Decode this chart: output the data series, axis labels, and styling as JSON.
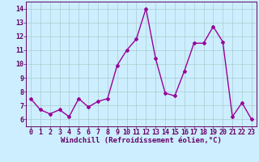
{
  "x": [
    0,
    1,
    2,
    3,
    4,
    5,
    6,
    7,
    8,
    9,
    10,
    11,
    12,
    13,
    14,
    15,
    16,
    17,
    18,
    19,
    20,
    21,
    22,
    23
  ],
  "y": [
    7.5,
    6.7,
    6.4,
    6.7,
    6.2,
    7.5,
    6.9,
    7.3,
    7.5,
    9.9,
    11.0,
    11.8,
    14.0,
    10.4,
    7.9,
    7.7,
    9.5,
    11.5,
    11.5,
    12.7,
    11.6,
    6.2,
    7.2,
    6.0
  ],
  "line_color": "#990099",
  "marker": "D",
  "marker_size": 2.0,
  "line_width": 1.0,
  "bg_color": "#cceeff",
  "grid_color": "#aacccc",
  "xlabel": "Windchill (Refroidissement éolien,°C)",
  "xlabel_color": "#660066",
  "tick_color": "#660066",
  "ylim": [
    5.5,
    14.5
  ],
  "xlim": [
    -0.5,
    23.5
  ],
  "yticks": [
    6,
    7,
    8,
    9,
    10,
    11,
    12,
    13,
    14
  ],
  "xticks": [
    0,
    1,
    2,
    3,
    4,
    5,
    6,
    7,
    8,
    9,
    10,
    11,
    12,
    13,
    14,
    15,
    16,
    17,
    18,
    19,
    20,
    21,
    22,
    23
  ],
  "axis_spine_color": "#660066",
  "label_fontsize": 6.5,
  "tick_fontsize": 6.0
}
